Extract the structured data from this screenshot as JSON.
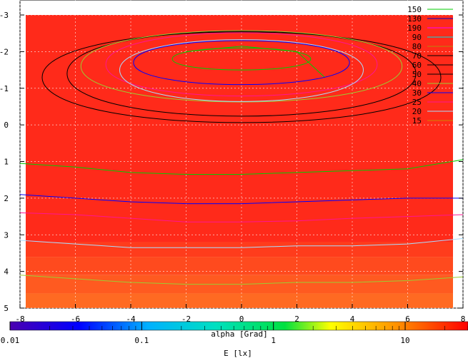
{
  "chart_data": {
    "type": "heatmap",
    "subtype": "contour",
    "xlabel": "alpha [Grad]",
    "colorbar_label": "E [lx]",
    "x_ticks": [
      "-8",
      "-6",
      "-4",
      "-2",
      "0",
      "2",
      "4",
      "6",
      "8"
    ],
    "y_ticks": [
      "-3",
      "-2",
      "-1",
      "0",
      "1",
      "2",
      "3",
      "4",
      "5"
    ],
    "colorbar_ticks": [
      "0.01",
      "0.1",
      "1",
      "10"
    ],
    "xlim": [
      -8,
      8
    ],
    "ylim": [
      -3,
      5
    ],
    "y_axis_inverted": true,
    "colorbar_range": [
      0.01,
      30
    ],
    "colorbar_scale": "log",
    "grid": true,
    "legend_position": "top-right",
    "contour_levels": [
      {
        "label": "150",
        "color": "#00cc00"
      },
      {
        "label": "130",
        "color": "#0000cc"
      },
      {
        "label": "190",
        "color": "#ff00ff"
      },
      {
        "label": "90",
        "color": "#00dddd"
      },
      {
        "label": "80",
        "color": "#b8860b"
      },
      {
        "label": "70",
        "color": "#000000"
      },
      {
        "label": "60",
        "color": "#000000"
      },
      {
        "label": "50",
        "color": "#000000"
      },
      {
        "label": "40",
        "color": "#9acd32"
      },
      {
        "label": "30",
        "color": "#0000ff"
      },
      {
        "label": "25",
        "color": "#ff1493"
      },
      {
        "label": "20",
        "color": "#aaddff"
      },
      {
        "label": "15",
        "color": "#cc8800"
      }
    ],
    "contour_lines": [
      {
        "color": "#00cc00",
        "points": [
          [
            -2,
            -2.0
          ],
          [
            0,
            -2.15
          ],
          [
            2,
            -2.0
          ],
          [
            3,
            -1.3
          ]
        ]
      },
      {
        "color": "#00cc00",
        "points": [
          [
            -8,
            1.05
          ],
          [
            -6,
            1.15
          ],
          [
            -4,
            1.3
          ],
          [
            -2,
            1.35
          ],
          [
            0,
            1.35
          ],
          [
            2,
            1.3
          ],
          [
            4,
            1.25
          ],
          [
            6,
            1.2
          ],
          [
            8,
            0.95
          ]
        ]
      },
      {
        "color": "#0000ff",
        "points": [
          [
            -8,
            1.9
          ],
          [
            -6,
            2.0
          ],
          [
            -4,
            2.1
          ],
          [
            -2,
            2.15
          ],
          [
            0,
            2.15
          ],
          [
            2,
            2.1
          ],
          [
            4,
            2.05
          ],
          [
            6,
            2.0
          ],
          [
            8,
            2.0
          ]
        ]
      },
      {
        "color": "#ff1493",
        "points": [
          [
            -8,
            2.4
          ],
          [
            -6,
            2.45
          ],
          [
            -4,
            2.55
          ],
          [
            -2,
            2.65
          ],
          [
            0,
            2.65
          ],
          [
            2,
            2.62
          ],
          [
            4,
            2.55
          ],
          [
            6,
            2.5
          ],
          [
            8,
            2.45
          ]
        ]
      },
      {
        "color": "#aaddff",
        "points": [
          [
            -8,
            3.15
          ],
          [
            -6,
            3.25
          ],
          [
            -4,
            3.35
          ],
          [
            -2,
            3.35
          ],
          [
            0,
            3.35
          ],
          [
            2,
            3.3
          ],
          [
            4,
            3.3
          ],
          [
            6,
            3.25
          ],
          [
            8,
            3.1
          ]
        ]
      },
      {
        "color": "#9acd32",
        "points": [
          [
            -8,
            4.1
          ],
          [
            -6,
            4.2
          ],
          [
            -4,
            4.3
          ],
          [
            -2,
            4.35
          ],
          [
            0,
            4.35
          ],
          [
            2,
            4.3
          ],
          [
            4,
            4.3
          ],
          [
            6,
            4.25
          ],
          [
            8,
            4.15
          ]
        ]
      }
    ],
    "contour_rings": [
      {
        "color": "#000000",
        "rx": 7.2,
        "top": -2.95,
        "bottom": 0.35,
        "cy": -1.3
      },
      {
        "color": "#000000",
        "rx": 6.3,
        "top": -2.95,
        "bottom": 0.15,
        "cy": -1.4
      },
      {
        "color": "#9acd32",
        "rx": 5.8,
        "top": -2.9,
        "bottom": -0.3,
        "cy": -1.6
      },
      {
        "color": "#ff1493",
        "rx": 4.9,
        "top": -2.8,
        "bottom": -0.5,
        "cy": -1.65
      },
      {
        "color": "#aaddff",
        "rx": 4.4,
        "top": -2.6,
        "bottom": -0.35,
        "cy": -1.5
      },
      {
        "color": "#0000ff",
        "rx": 3.9,
        "top": -2.5,
        "bottom": -0.9,
        "cy": -1.7
      },
      {
        "color": "#00cc00",
        "rx": 2.5,
        "top": -2.2,
        "bottom": -1.4,
        "cy": -1.8
      }
    ],
    "color_bands": [
      {
        "from": -3,
        "to": 3.2,
        "color": "#ff2a1a"
      },
      {
        "from": 3.2,
        "to": 3.6,
        "color": "#ff3c1c"
      },
      {
        "from": 3.6,
        "to": 4.1,
        "color": "#ff4a1e"
      },
      {
        "from": 4.1,
        "to": 4.6,
        "color": "#ff5a20"
      },
      {
        "from": 4.6,
        "to": 5,
        "color": "#ff6a22"
      }
    ]
  }
}
